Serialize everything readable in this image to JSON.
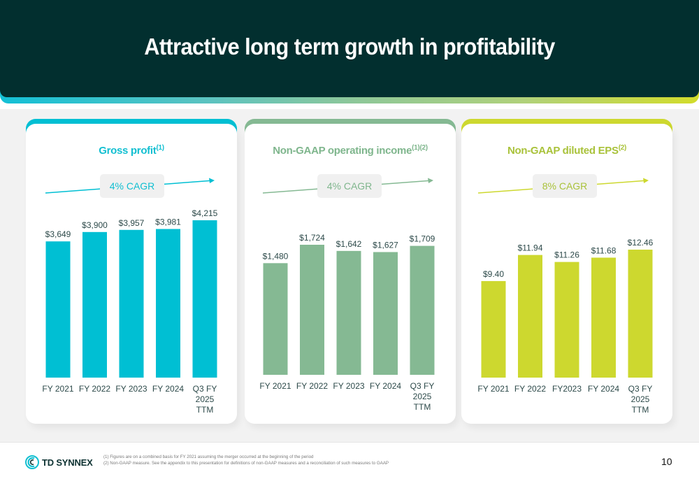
{
  "slide": {
    "title": "Attractive long term growth in profitability",
    "page_number": "10",
    "logo_text": "TD SYNNEX",
    "footnotes": [
      "(1) Figures are on a combined basis for FY 2021 assuming the merger occurred at the beginning of the period",
      "(2) Non-GAAP measure. See the appendix to this presentation for definitions of non-GAAP measures and a reconciliation of such measures to GAAP"
    ],
    "colors": {
      "header_bg": "#022f2f",
      "gross_profit": "#00bfd3",
      "operating_income": "#85b993",
      "eps": "#cdd82f",
      "label_text": "#2d4a4a"
    }
  },
  "chart_data": [
    {
      "type": "bar",
      "title": "Gross profit",
      "title_superscript": "(1)",
      "cagr_label": "4% CAGR",
      "color": "#00bfd3",
      "title_color": "#12bfd1",
      "categories": [
        "FY 2021",
        "FY 2022",
        "FY 2023",
        "FY 2024",
        "Q3 FY 2025 TTM"
      ],
      "category_lines": [
        [
          "FY 2021"
        ],
        [
          "FY 2022"
        ],
        [
          "FY 2023"
        ],
        [
          "FY 2024"
        ],
        [
          "Q3 FY",
          "2025",
          "TTM"
        ]
      ],
      "values": [
        3649,
        3900,
        3957,
        3981,
        4215
      ],
      "value_labels": [
        "$3,649",
        "$3,900",
        "$3,957",
        "$3,981",
        "$4,215"
      ],
      "ylim": [
        0,
        4215
      ],
      "xlabel": "",
      "ylabel": "",
      "grid": false
    },
    {
      "type": "bar",
      "title": "Non-GAAP operating income",
      "title_superscript": "(1)(2)",
      "cagr_label": "4% CAGR",
      "color": "#85b993",
      "title_color": "#7fb68d",
      "categories": [
        "FY 2021",
        "FY 2022",
        "FY 2023",
        "FY 2024",
        "Q3 FY 2025 TTM"
      ],
      "category_lines": [
        [
          "FY 2021"
        ],
        [
          "FY 2022"
        ],
        [
          "FY 2023"
        ],
        [
          "FY 2024"
        ],
        [
          "Q3 FY",
          "2025",
          "TTM"
        ]
      ],
      "values": [
        1480,
        1724,
        1642,
        1627,
        1709
      ],
      "value_labels": [
        "$1,480",
        "$1,724",
        "$1,642",
        "$1,627",
        "$1,709"
      ],
      "ylim": [
        0,
        1724
      ],
      "xlabel": "",
      "ylabel": "",
      "grid": false
    },
    {
      "type": "bar",
      "title": "Non-GAAP diluted EPS",
      "title_superscript": "(2)",
      "cagr_label": "8% CAGR",
      "color": "#cdd82f",
      "title_color": "#a9c23a",
      "categories": [
        "FY 2021",
        "FY 2022",
        "FY2023",
        "FY 2024",
        "Q3 FY 2025 TTM"
      ],
      "category_lines": [
        [
          "FY 2021"
        ],
        [
          "FY 2022"
        ],
        [
          "FY2023"
        ],
        [
          "FY 2024"
        ],
        [
          "Q3 FY",
          "2025",
          "TTM"
        ]
      ],
      "values": [
        9.4,
        11.94,
        11.26,
        11.68,
        12.46
      ],
      "value_labels": [
        "$9.40",
        "$11.94",
        "$11.26",
        "$11.68",
        "$12.46"
      ],
      "ylim": [
        0,
        12.46
      ],
      "xlabel": "",
      "ylabel": "",
      "grid": false
    }
  ]
}
